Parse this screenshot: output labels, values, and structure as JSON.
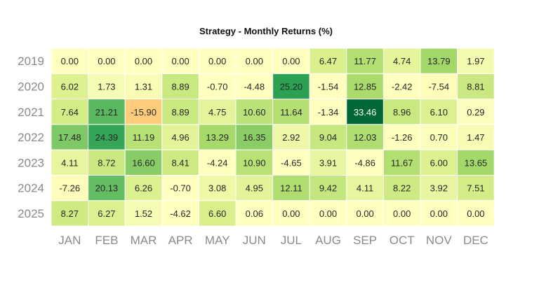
{
  "chart_data": {
    "type": "heatmap",
    "title": "Strategy - Monthly Returns (%)",
    "columns": [
      "JAN",
      "FEB",
      "MAR",
      "APR",
      "MAY",
      "JUN",
      "JUL",
      "AUG",
      "SEP",
      "OCT",
      "NOV",
      "DEC"
    ],
    "rows": [
      "2019",
      "2020",
      "2021",
      "2022",
      "2023",
      "2024",
      "2025"
    ],
    "values": [
      [
        "0.00",
        "0.00",
        "0.00",
        "0.00",
        "0.00",
        "0.00",
        "0.00",
        "6.47",
        "11.77",
        "4.74",
        "13.79",
        "1.97"
      ],
      [
        "6.02",
        "1.73",
        "1.31",
        "8.89",
        "-0.70",
        "-4.48",
        "25.20",
        "-1.54",
        "12.85",
        "-2.42",
        "-7.54",
        "8.81"
      ],
      [
        "7.64",
        "21.21",
        "-15.90",
        "8.89",
        "4.75",
        "10.60",
        "11.64",
        "-1.34",
        "33.46",
        "8.96",
        "6.10",
        "0.29"
      ],
      [
        "17.48",
        "24.39",
        "11.19",
        "4.96",
        "13.29",
        "16.35",
        "2.92",
        "9.04",
        "12.03",
        "-1.26",
        "0.70",
        "1.47"
      ],
      [
        "4.11",
        "8.72",
        "16.60",
        "8.41",
        "-4.24",
        "10.90",
        "-4.65",
        "3.91",
        "-4.86",
        "11.67",
        "6.00",
        "13.65"
      ],
      [
        "-7.26",
        "20.13",
        "6.26",
        "-0.70",
        "3.08",
        "4.95",
        "12.11",
        "9.42",
        "4.11",
        "8.22",
        "3.92",
        "7.51"
      ],
      [
        "8.27",
        "6.27",
        "1.52",
        "-4.62",
        "6.60",
        "0.06",
        "0.00",
        "0.00",
        "0.00",
        "0.00",
        "0.00",
        "0.00"
      ]
    ],
    "colormap": "RdYlGn",
    "center": 0,
    "legend": false,
    "grid": false
  }
}
